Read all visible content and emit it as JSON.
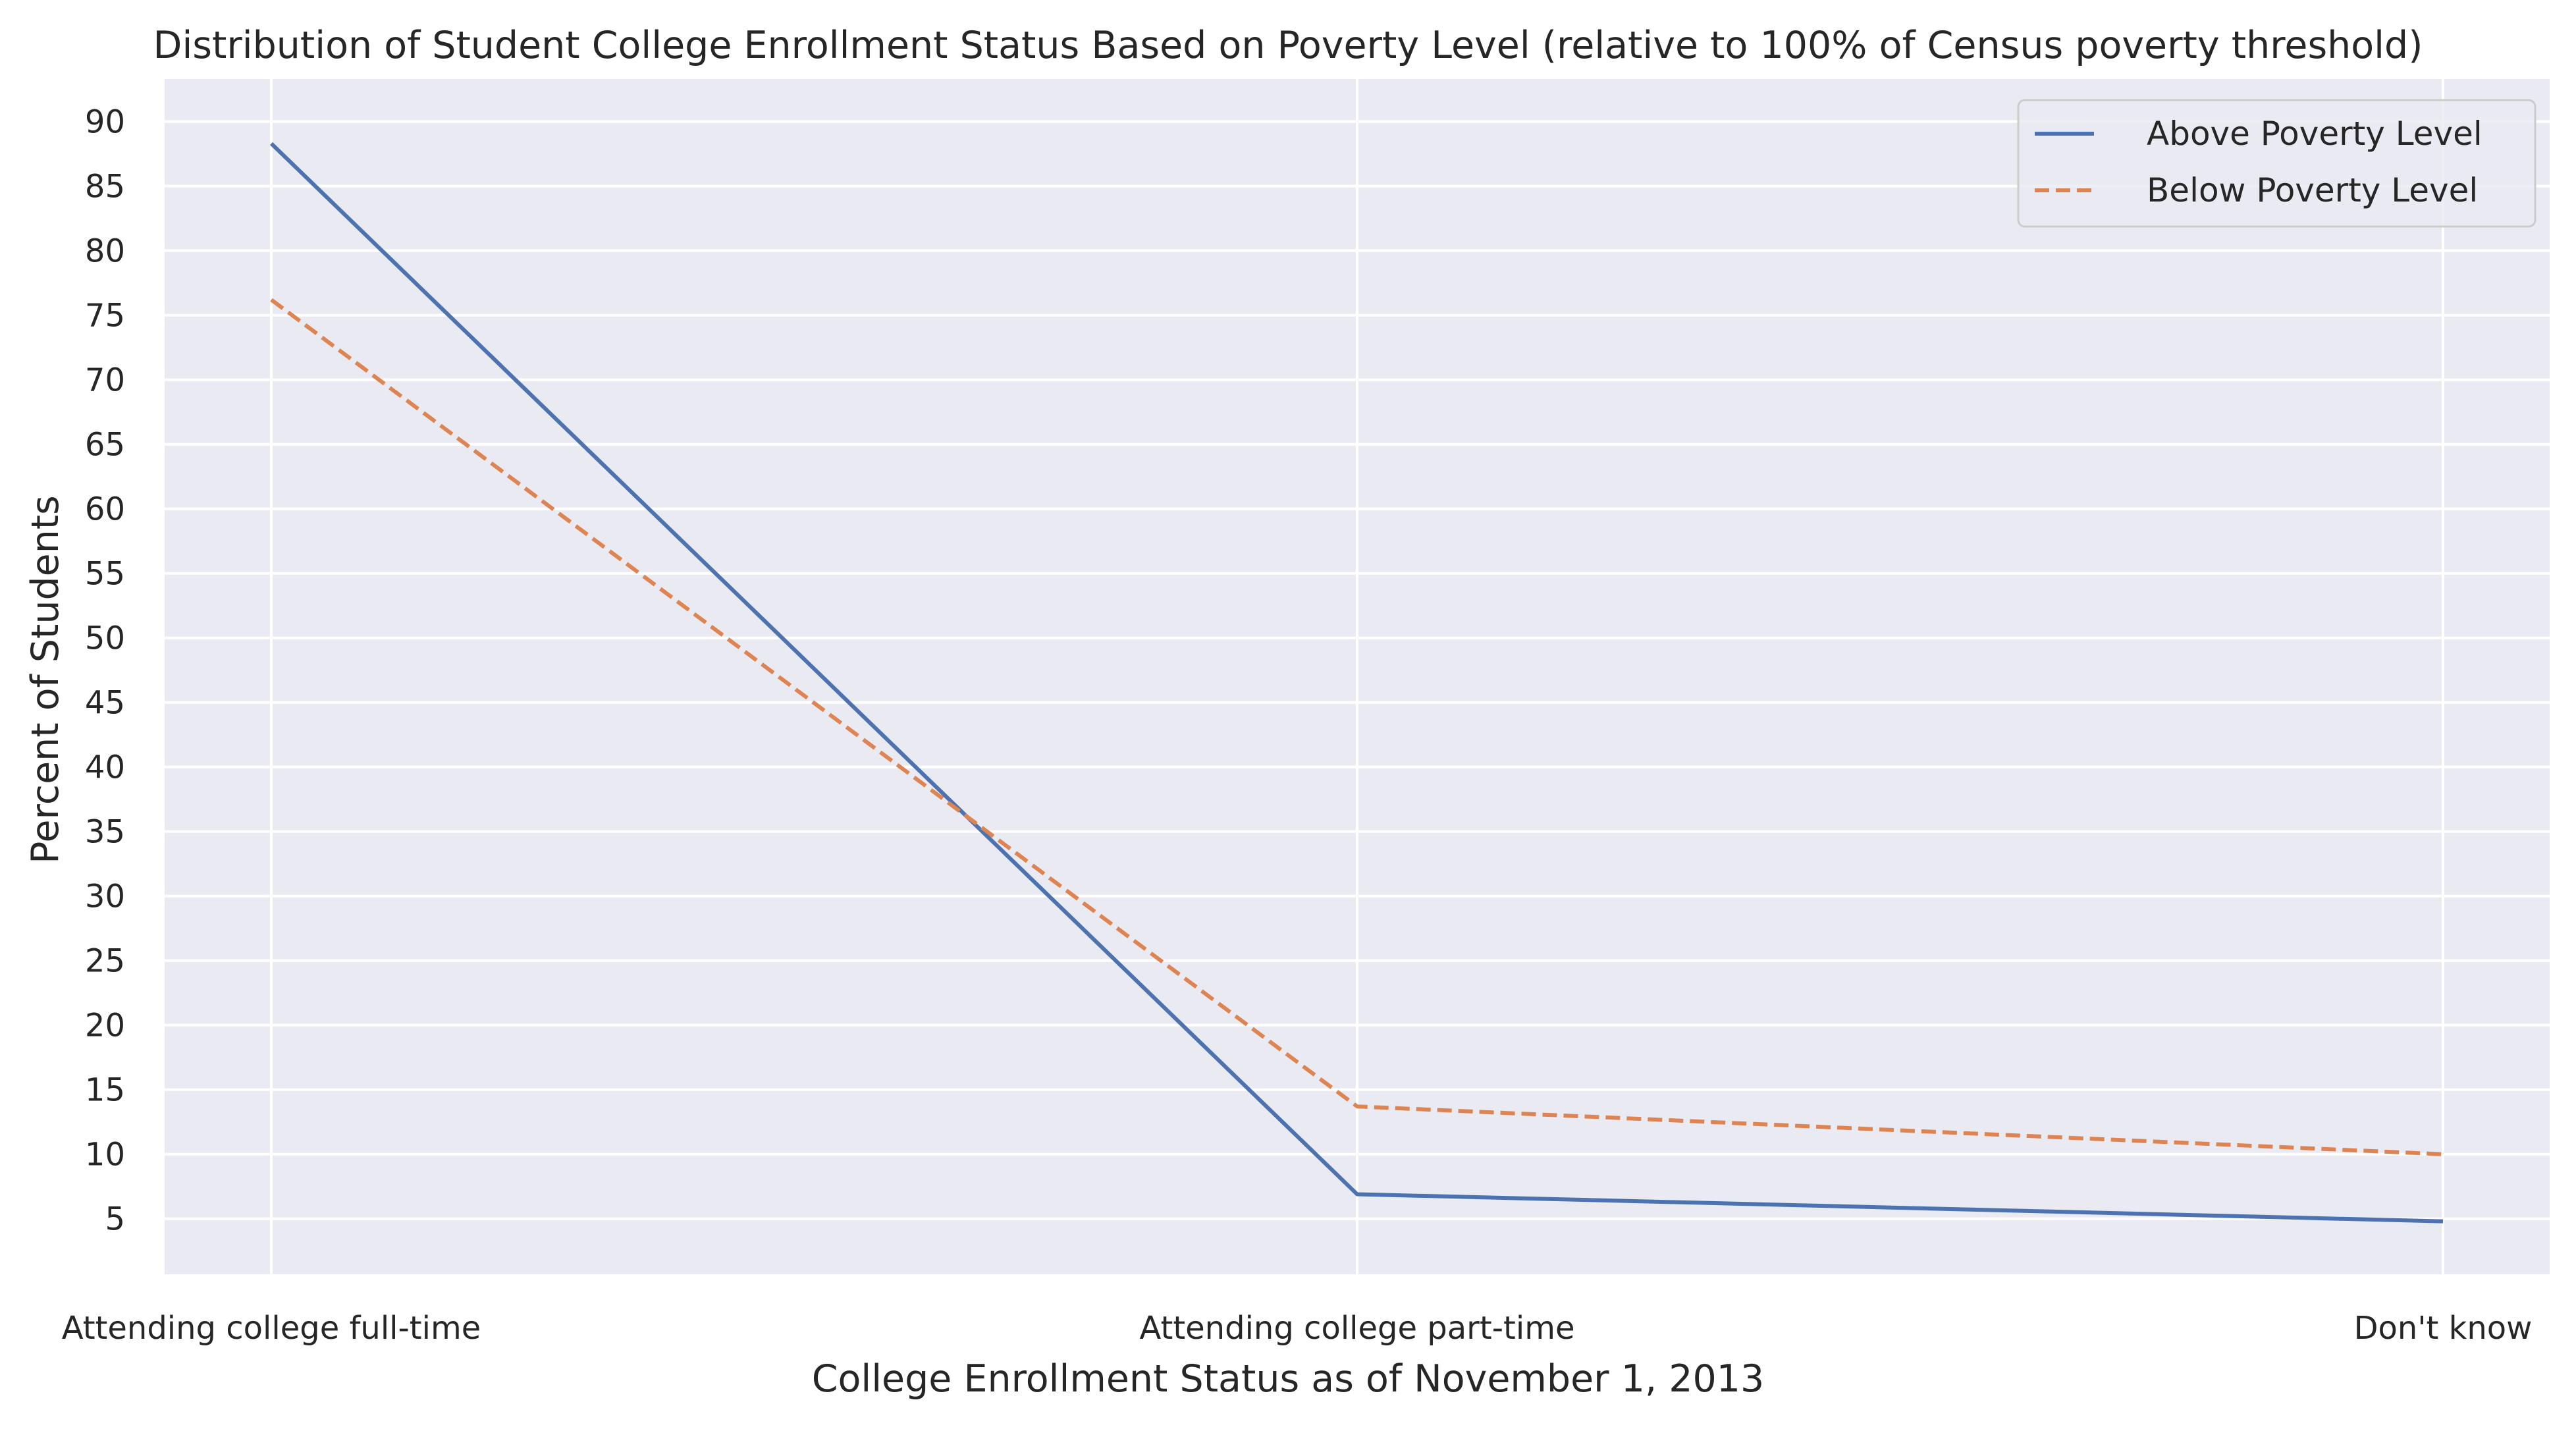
{
  "chart_data": {
    "type": "line",
    "title": "Distribution of Student College Enrollment Status Based on Poverty Level (relative to 100% of Census poverty threshold)",
    "xlabel": "College Enrollment Status as of November 1, 2013",
    "ylabel": "Percent of Students",
    "categories": [
      "Attending college full-time",
      "Attending college part-time",
      "Don't know"
    ],
    "yticks": [
      "5",
      "10",
      "15",
      "20",
      "25",
      "30",
      "35",
      "40",
      "45",
      "50",
      "55",
      "60",
      "65",
      "70",
      "75",
      "80",
      "85",
      "90"
    ],
    "ylim": [
      0.7,
      93.3
    ],
    "grid": true,
    "legend_position": "top-right",
    "series": [
      {
        "name": "Above Poverty Level",
        "values": [
          88.3,
          6.9,
          4.8
        ],
        "color": "#4c72b0",
        "line_style": "solid"
      },
      {
        "name": "Below Poverty Level",
        "values": [
          76.2,
          13.7,
          10.0
        ],
        "color": "#dd8452",
        "line_style": "dashed"
      }
    ],
    "background": "#eaeaf2"
  }
}
